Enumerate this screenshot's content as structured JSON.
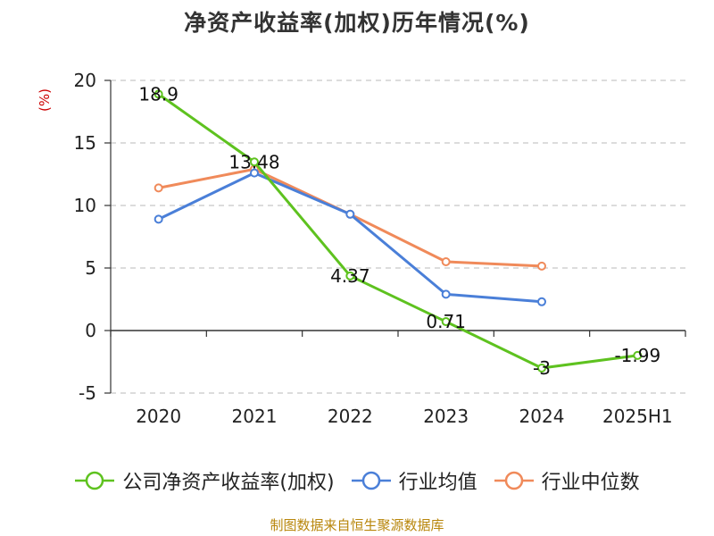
{
  "chart_data": {
    "type": "line",
    "title": "净资产收益率(加权)历年情况(%)",
    "ylabel": "(%)",
    "xlabel": "",
    "categories": [
      "2020",
      "2021",
      "2022",
      "2023",
      "2024",
      "2025H1"
    ],
    "ylim": [
      -5,
      20
    ],
    "yticks": [
      -5,
      0,
      5,
      10,
      15,
      20
    ],
    "grid": true,
    "legend_position": "bottom",
    "series": [
      {
        "name": "公司净资产收益率(加权)",
        "color": "#5ec21f",
        "values": [
          18.9,
          13.48,
          4.37,
          0.71,
          -3,
          -1.99
        ],
        "labels": [
          "18.9",
          "13.48",
          "4.37",
          "0.71",
          "-3",
          "-1.99"
        ]
      },
      {
        "name": "行业均值",
        "color": "#4a7fd8",
        "values": [
          8.9,
          12.6,
          9.3,
          2.9,
          2.3,
          null
        ]
      },
      {
        "name": "行业中位数",
        "color": "#f08a5a",
        "values": [
          11.4,
          12.9,
          9.3,
          5.5,
          5.15,
          null
        ]
      }
    ]
  },
  "ylabel_color": "#cc0000",
  "source": {
    "text": "制图数据来自恒生聚源数据库",
    "color": "#b8860b"
  }
}
